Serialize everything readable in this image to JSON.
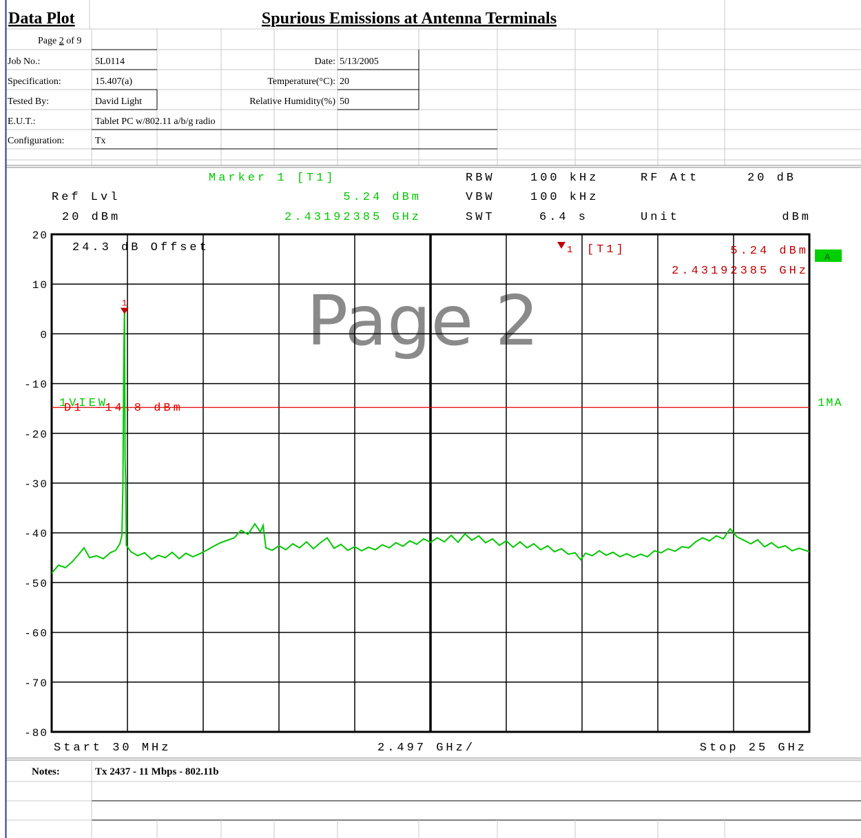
{
  "header": {
    "title": "Data Plot",
    "heading": "Spurious Emissions at Antenna Terminals",
    "page": [
      "Page",
      "2",
      "of",
      "9"
    ],
    "job_no": {
      "label": "Job No.:",
      "value": "5L0114"
    },
    "date": {
      "label": "Date:",
      "value": "5/13/2005"
    },
    "specification": {
      "label": "Specification:",
      "value": "15.407(a)"
    },
    "temperature": {
      "label": "Temperature(°C):",
      "value": "20"
    },
    "tested_by": {
      "label": "Tested By:",
      "value": "David Light"
    },
    "humidity": {
      "label": "Relative Humidity(%)",
      "value": "50"
    },
    "eut": {
      "label": "E.U.T.:",
      "value": "Tablet PC w/802.11 a/b/g radio"
    },
    "configuration": {
      "label": "Configuration:",
      "value": "Tx"
    }
  },
  "chart_data": {
    "type": "line",
    "color": "#00c800",
    "settings": {
      "marker_title": "Marker 1 [T1]",
      "rbw_label": "RBW",
      "rbw": "100 kHz",
      "rf_att_label": "RF Att",
      "rf_att": "20 dB",
      "ref_lvl_label": "Ref Lvl",
      "ref_lvl": "20 dBm",
      "vbw_label": "VBW",
      "vbw": "100 kHz",
      "swt_label": "SWT",
      "swt": "6.4 s",
      "unit_label": "Unit",
      "unit": "dBm"
    },
    "offset": "24.3 dB Offset",
    "trace_label": "A",
    "view_label": "1VIEW",
    "detector": "1MA",
    "watermark": "Page 2",
    "start": "Start 30 MHz",
    "span": "2.497 GHz/",
    "stop": "Stop 25 GHz",
    "marker": {
      "number": "1",
      "tag": "[T1]",
      "value": 5.24,
      "value_label": "5.24 dBm",
      "x": 2.43192385,
      "x_label": "2.43192385 GHz"
    },
    "display_line": {
      "name": "D1",
      "value": -14.8,
      "label": "-14.8 dBm"
    },
    "xlim": [
      0.03,
      25
    ],
    "xticks": [
      0.03,
      2.527,
      5.024,
      7.521,
      10.018,
      12.515,
      15.012,
      17.509,
      20.006,
      22.503,
      25
    ],
    "ylim": [
      -80,
      20
    ],
    "yticks": [
      -80,
      -70,
      -60,
      -50,
      -40,
      -30,
      -20,
      -10,
      0,
      10,
      20
    ],
    "x": [
      0.03,
      0.257,
      0.484,
      0.711,
      0.938,
      1.097,
      1.279,
      1.506,
      1.733,
      1.96,
      2.141,
      2.277,
      2.345,
      2.38,
      2.41,
      2.43192385,
      2.45,
      2.47,
      2.49,
      2.64,
      2.868,
      3.095,
      3.322,
      3.549,
      3.776,
      4.003,
      4.23,
      4.457,
      4.684,
      4.911,
      5.138,
      5.365,
      5.592,
      5.819,
      6.046,
      6.273,
      6.5,
      6.727,
      6.909,
      7.0,
      7.09,
      7.294,
      7.521,
      7.748,
      7.975,
      8.202,
      8.429,
      8.656,
      8.883,
      9.11,
      9.337,
      9.564,
      9.791,
      10.018,
      10.245,
      10.472,
      10.699,
      10.926,
      11.153,
      11.38,
      11.607,
      11.834,
      12.061,
      12.288,
      12.515,
      12.742,
      12.969,
      13.196,
      13.423,
      13.65,
      13.877,
      14.104,
      14.331,
      14.558,
      14.785,
      15.012,
      15.239,
      15.466,
      15.693,
      15.92,
      16.147,
      16.374,
      16.601,
      16.828,
      17.055,
      17.282,
      17.464,
      17.623,
      17.85,
      18.077,
      18.304,
      18.531,
      18.758,
      18.985,
      19.212,
      19.439,
      19.666,
      19.893,
      20.12,
      20.347,
      20.574,
      20.801,
      21.028,
      21.255,
      21.482,
      21.709,
      21.936,
      22.163,
      22.39,
      22.617,
      22.844,
      23.071,
      23.298,
      23.525,
      23.752,
      23.979,
      24.206,
      24.433,
      24.66,
      25
    ],
    "values": [
      -48.1,
      -46.5,
      -47.0,
      -45.8,
      -44.2,
      -43.0,
      -45.0,
      -44.6,
      -45.2,
      -44.0,
      -43.5,
      -42.2,
      -40.5,
      -30.0,
      -4.0,
      5.24,
      -25.0,
      -30.0,
      -42.5,
      -43.8,
      -44.6,
      -44.0,
      -45.3,
      -44.5,
      -45.0,
      -43.9,
      -45.2,
      -44.1,
      -44.8,
      -44.2,
      -43.5,
      -42.7,
      -42.0,
      -41.5,
      -41.0,
      -39.5,
      -40.3,
      -38.2,
      -39.8,
      -38.5,
      -43.0,
      -43.5,
      -42.6,
      -43.4,
      -42.2,
      -43.0,
      -41.8,
      -43.2,
      -42.0,
      -41.0,
      -43.1,
      -42.3,
      -43.5,
      -42.8,
      -43.6,
      -42.9,
      -43.4,
      -42.4,
      -43.0,
      -42.0,
      -42.7,
      -41.6,
      -42.3,
      -41.2,
      -41.9,
      -41.0,
      -41.8,
      -40.5,
      -41.9,
      -40.2,
      -41.5,
      -40.6,
      -42.0,
      -41.2,
      -42.5,
      -41.6,
      -42.9,
      -41.8,
      -43.0,
      -42.2,
      -43.4,
      -42.6,
      -43.8,
      -43.2,
      -44.3,
      -44.0,
      -45.4,
      -44.1,
      -44.6,
      -43.6,
      -44.5,
      -43.9,
      -44.8,
      -44.2,
      -44.9,
      -44.3,
      -44.8,
      -43.6,
      -44.0,
      -43.2,
      -43.7,
      -42.8,
      -43.0,
      -41.8,
      -41.0,
      -41.6,
      -40.6,
      -41.2,
      -39.2,
      -40.8,
      -41.5,
      -42.2,
      -41.4,
      -42.8,
      -42.0,
      -43.0,
      -42.6,
      -43.6,
      -43.1,
      -43.8
    ]
  },
  "notes": {
    "label": "Notes:",
    "value": "Tx 2437 - 11 Mbps - 802.11b"
  }
}
